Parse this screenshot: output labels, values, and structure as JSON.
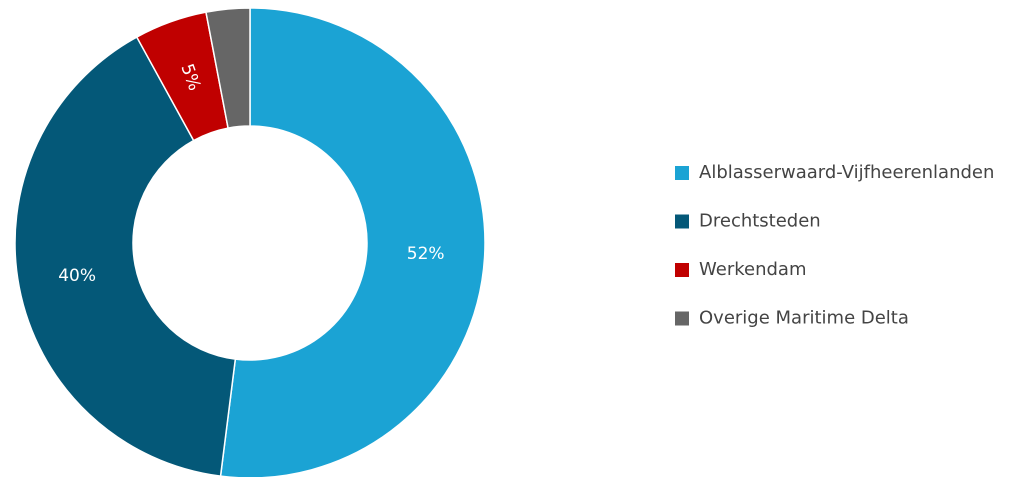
{
  "chart_data": {
    "type": "pie",
    "categories": [
      "Alblasserwaard-Vijfheerenlanden",
      "Drechtsteden",
      "Werkendam",
      "Overige Maritime Delta"
    ],
    "values": [
      52,
      40,
      5,
      3
    ],
    "value_labels": [
      "52%",
      "40%",
      "5%",
      null
    ],
    "colors": [
      "#1ba3d4",
      "#045878",
      "#c00000",
      "#666666"
    ],
    "legend": "right"
  }
}
